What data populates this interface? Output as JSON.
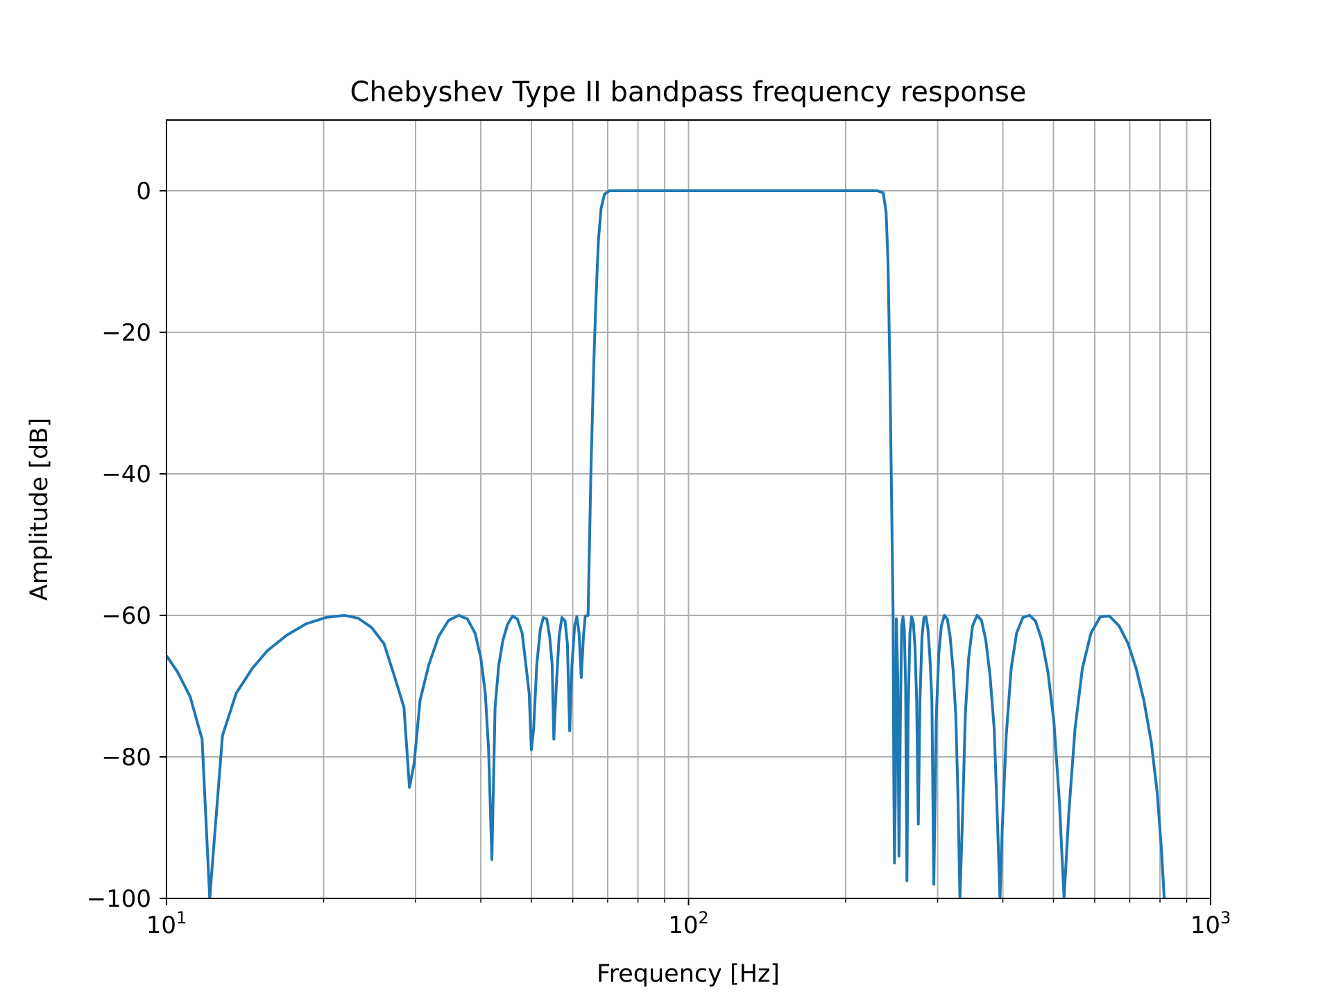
{
  "chart_data": {
    "type": "line",
    "title": "Chebyshev Type II bandpass frequency response",
    "xlabel": "Frequency [Hz]",
    "ylabel": "Amplitude [dB]",
    "xscale": "log",
    "xlim": [
      10,
      1000
    ],
    "ylim": [
      -100,
      10
    ],
    "grid": true,
    "grid_minor_x": true,
    "xticks": [
      {
        "value": 10,
        "base": "10",
        "exp": "1"
      },
      {
        "value": 100,
        "base": "10",
        "exp": "2"
      },
      {
        "value": 1000,
        "base": "10",
        "exp": "3"
      }
    ],
    "yticks": [
      {
        "value": 0,
        "label": "0"
      },
      {
        "value": -20,
        "label": "−20"
      },
      {
        "value": -40,
        "label": "−40"
      },
      {
        "value": -60,
        "label": "−60"
      },
      {
        "value": -80,
        "label": "−80"
      },
      {
        "value": -100,
        "label": "−100"
      }
    ],
    "line_color": "#1f77b4",
    "series": [
      {
        "points": [
          [
            10,
            -65.7
          ],
          [
            10.5,
            -68
          ],
          [
            11.1,
            -71.5
          ],
          [
            11.7,
            -77.5
          ],
          [
            12.1,
            -100
          ],
          [
            12.8,
            -77
          ],
          [
            13.6,
            -71
          ],
          [
            14.6,
            -67.5
          ],
          [
            15.6,
            -65
          ],
          [
            17,
            -62.8
          ],
          [
            18.5,
            -61.2
          ],
          [
            20.2,
            -60.3
          ],
          [
            21.9,
            -60
          ],
          [
            23.3,
            -60.4
          ],
          [
            24.7,
            -61.7
          ],
          [
            26.1,
            -64
          ],
          [
            27.3,
            -68.5
          ],
          [
            28.5,
            -73
          ],
          [
            29.2,
            -84.3
          ],
          [
            29.8,
            -81
          ],
          [
            30.6,
            -72
          ],
          [
            31.8,
            -67
          ],
          [
            33.2,
            -63
          ],
          [
            34.7,
            -60.7
          ],
          [
            36.3,
            -60
          ],
          [
            37.7,
            -60.5
          ],
          [
            39.0,
            -62.5
          ],
          [
            40.0,
            -66
          ],
          [
            40.8,
            -71
          ],
          [
            41.4,
            -79
          ],
          [
            42.0,
            -94.5
          ],
          [
            42.6,
            -73
          ],
          [
            43.3,
            -67
          ],
          [
            44.1,
            -63.5
          ],
          [
            45.0,
            -61.3
          ],
          [
            46.0,
            -60.1
          ],
          [
            47.0,
            -60.5
          ],
          [
            48.0,
            -62.5
          ],
          [
            48.8,
            -67
          ],
          [
            49.5,
            -71
          ],
          [
            50.0,
            -79
          ],
          [
            50.5,
            -76
          ],
          [
            51.2,
            -67
          ],
          [
            52.0,
            -62
          ],
          [
            52.7,
            -60.3
          ],
          [
            53.5,
            -60.5
          ],
          [
            54.2,
            -63
          ],
          [
            54.8,
            -67
          ],
          [
            55.2,
            -77.5
          ],
          [
            55.8,
            -70
          ],
          [
            56.5,
            -63
          ],
          [
            57.2,
            -60.3
          ],
          [
            58.0,
            -60.8
          ],
          [
            58.6,
            -64
          ],
          [
            59.2,
            -76.3
          ],
          [
            59.8,
            -67
          ],
          [
            60.5,
            -61.5
          ],
          [
            61.1,
            -60.2
          ],
          [
            61.7,
            -62.5
          ],
          [
            62.3,
            -68.8
          ],
          [
            62.9,
            -63
          ],
          [
            63.4,
            -60.1
          ],
          [
            64.2,
            -60
          ],
          [
            65.0,
            -40
          ],
          [
            65.8,
            -25
          ],
          [
            66.5,
            -15
          ],
          [
            67.2,
            -7
          ],
          [
            68.0,
            -2.5
          ],
          [
            69.0,
            -0.5
          ],
          [
            70.5,
            0
          ],
          [
            100,
            0
          ],
          [
            170,
            0
          ],
          [
            230,
            0
          ],
          [
            236,
            -0.3
          ],
          [
            239,
            -3
          ],
          [
            241,
            -10
          ],
          [
            243,
            -25
          ],
          [
            245,
            -45
          ],
          [
            246.5,
            -60
          ],
          [
            247.3,
            -84
          ],
          [
            248,
            -95
          ],
          [
            249,
            -85
          ],
          [
            250,
            -60.5
          ],
          [
            251.5,
            -68
          ],
          [
            253,
            -94
          ],
          [
            254.5,
            -75
          ],
          [
            256,
            -61.5
          ],
          [
            257.5,
            -60.2
          ],
          [
            259,
            -62
          ],
          [
            260.5,
            -70
          ],
          [
            262,
            -97.5
          ],
          [
            263.5,
            -73
          ],
          [
            265.5,
            -62.5
          ],
          [
            267.5,
            -60.2
          ],
          [
            269.5,
            -61
          ],
          [
            271.5,
            -64.5
          ],
          [
            273.5,
            -72
          ],
          [
            275.5,
            -89.5
          ],
          [
            277.5,
            -72
          ],
          [
            280,
            -63
          ],
          [
            282.5,
            -60.3
          ],
          [
            285,
            -60.2
          ],
          [
            287.5,
            -62
          ],
          [
            290,
            -66
          ],
          [
            292.5,
            -72
          ],
          [
            295,
            -98
          ],
          [
            298,
            -75
          ],
          [
            301.5,
            -65.5
          ],
          [
            305,
            -61.5
          ],
          [
            309,
            -60
          ],
          [
            313,
            -60.5
          ],
          [
            317,
            -63
          ],
          [
            321,
            -67.5
          ],
          [
            325,
            -74
          ],
          [
            328,
            -85
          ],
          [
            331,
            -100
          ],
          [
            335,
            -88
          ],
          [
            339,
            -74
          ],
          [
            344,
            -66
          ],
          [
            350,
            -61.5
          ],
          [
            357,
            -60
          ],
          [
            364,
            -60.7
          ],
          [
            371,
            -63.5
          ],
          [
            378,
            -68.5
          ],
          [
            385,
            -76
          ],
          [
            391,
            -90
          ],
          [
            395,
            -100
          ],
          [
            399,
            -90
          ],
          [
            406,
            -77
          ],
          [
            415,
            -67.5
          ],
          [
            425,
            -62.5
          ],
          [
            437,
            -60.3
          ],
          [
            450,
            -60
          ],
          [
            462,
            -60.8
          ],
          [
            475,
            -63.5
          ],
          [
            488,
            -68
          ],
          [
            501,
            -75
          ],
          [
            513,
            -86
          ],
          [
            524,
            -100
          ],
          [
            535,
            -88
          ],
          [
            550,
            -76
          ],
          [
            568,
            -67.5
          ],
          [
            590,
            -62.5
          ],
          [
            615,
            -60.2
          ],
          [
            640,
            -60.1
          ],
          [
            668,
            -61.5
          ],
          [
            695,
            -64
          ],
          [
            720,
            -67.5
          ],
          [
            745,
            -72
          ],
          [
            770,
            -78
          ],
          [
            790,
            -85
          ],
          [
            805,
            -93
          ],
          [
            815,
            -100
          ],
          [
            818,
            -100
          ]
        ]
      }
    ]
  }
}
